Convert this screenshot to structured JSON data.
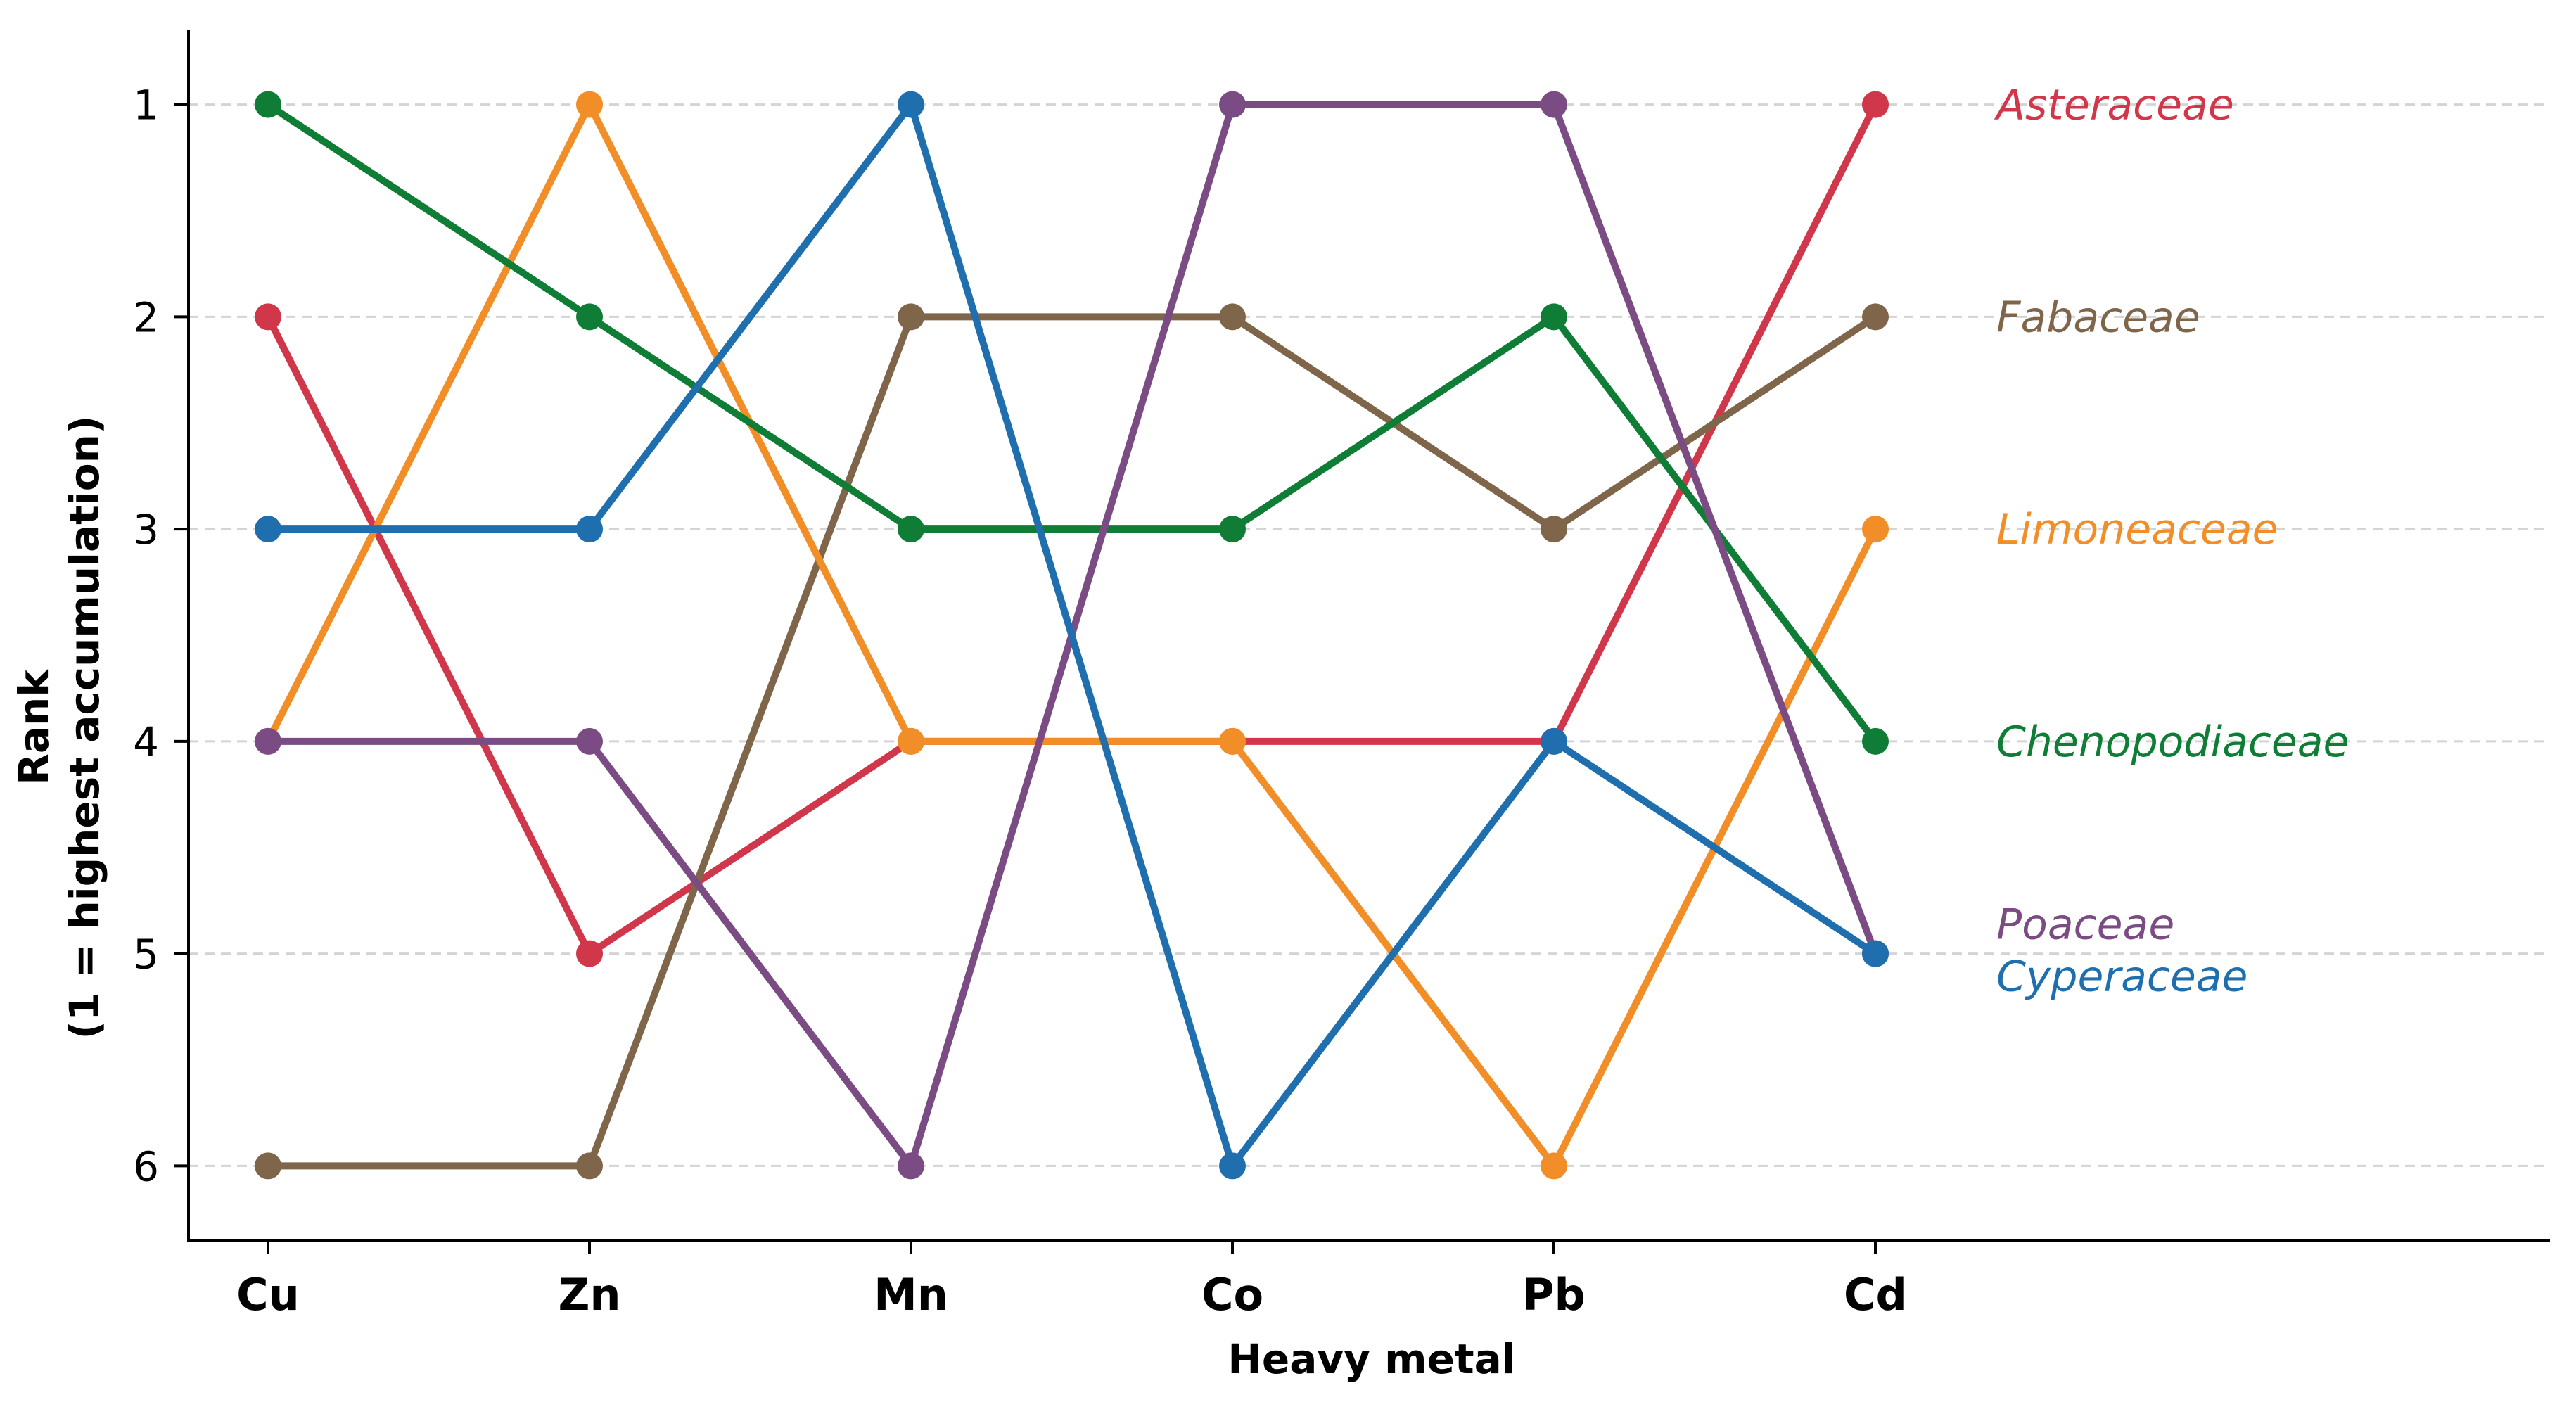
{
  "chart_data": {
    "type": "line",
    "categories": [
      "Cu",
      "Zn",
      "Mn",
      "Co",
      "Pb",
      "Cd"
    ],
    "xlabel": "Heavy metal",
    "ylabel_lines": [
      "Rank",
      "(1 = highest accumulation)"
    ],
    "ylim": [
      6.35,
      0.65
    ],
    "y_inverted": true,
    "yticks": [
      "1",
      "2",
      "3",
      "4",
      "5",
      "6"
    ],
    "grid": "horizontal dashed",
    "legend": "direct labels at right end of lines",
    "series": [
      {
        "name": "Asteraceae",
        "color": "#d1374a",
        "values": [
          2,
          5,
          4,
          4,
          4,
          1
        ]
      },
      {
        "name": "Fabaceae",
        "color": "#7f654a",
        "values": [
          6,
          6,
          2,
          2,
          3,
          2
        ]
      },
      {
        "name": "Limoneaceae",
        "color": "#f28e27",
        "values": [
          4,
          1,
          4,
          4,
          6,
          3
        ]
      },
      {
        "name": "Chenopodiaceae",
        "color": "#0f7d35",
        "values": [
          1,
          2,
          3,
          3,
          2,
          4
        ]
      },
      {
        "name": "Poaceae",
        "color": "#7b4c83",
        "values": [
          4,
          4,
          6,
          1,
          1,
          5
        ]
      },
      {
        "name": "Cyperaceae",
        "color": "#1f6fae",
        "values": [
          3,
          3,
          1,
          6,
          4,
          5
        ]
      }
    ]
  }
}
